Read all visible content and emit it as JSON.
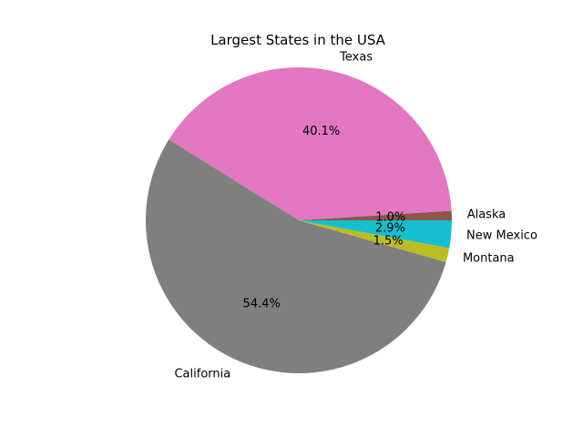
{
  "chart_data": {
    "type": "pie",
    "title": "Largest States in the USA",
    "categories": [
      "Alaska",
      "Texas",
      "California",
      "Montana",
      "New Mexico"
    ],
    "values": [
      1.0,
      40.1,
      54.4,
      1.5,
      2.9
    ],
    "value_labels": [
      "1.0%",
      "40.1%",
      "54.4%",
      "1.5%",
      "2.9%"
    ],
    "colors": [
      "#8c564b",
      "#e377c2",
      "#7f7f7f",
      "#bcbd22",
      "#17becf"
    ],
    "start_angle_deg": 0,
    "direction": "counterclockwise",
    "legend": "none"
  }
}
